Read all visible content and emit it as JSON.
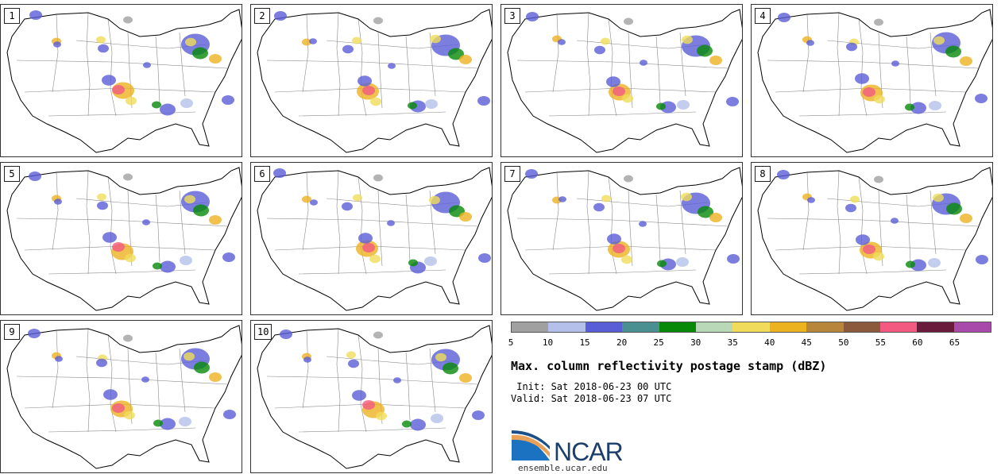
{
  "panels": [
    {
      "label": "1"
    },
    {
      "label": "2"
    },
    {
      "label": "3"
    },
    {
      "label": "4"
    },
    {
      "label": "5"
    },
    {
      "label": "6"
    },
    {
      "label": "7"
    },
    {
      "label": "8"
    },
    {
      "label": "9"
    },
    {
      "label": "10"
    }
  ],
  "colorbar": {
    "colors": [
      "#a0a0a0",
      "#b4c0ea",
      "#5a5ed6",
      "#4a9090",
      "#088a08",
      "#b8d8b8",
      "#f0dc5a",
      "#ecb220",
      "#b8863a",
      "#8b5a3c",
      "#f25a82",
      "#6a1a3a",
      "#a84aaa"
    ],
    "ticks": [
      "5",
      "10",
      "15",
      "20",
      "25",
      "30",
      "35",
      "40",
      "45",
      "50",
      "55",
      "60",
      "65"
    ]
  },
  "title": "Max. column reflectivity postage stamp (dBZ)",
  "init": " Init: Sat 2018-06-23 00 UTC",
  "valid": "Valid: Sat 2018-06-23 07 UTC",
  "logo": {
    "text": "NCAR",
    "url": "ensemble.ucar.edu"
  }
}
